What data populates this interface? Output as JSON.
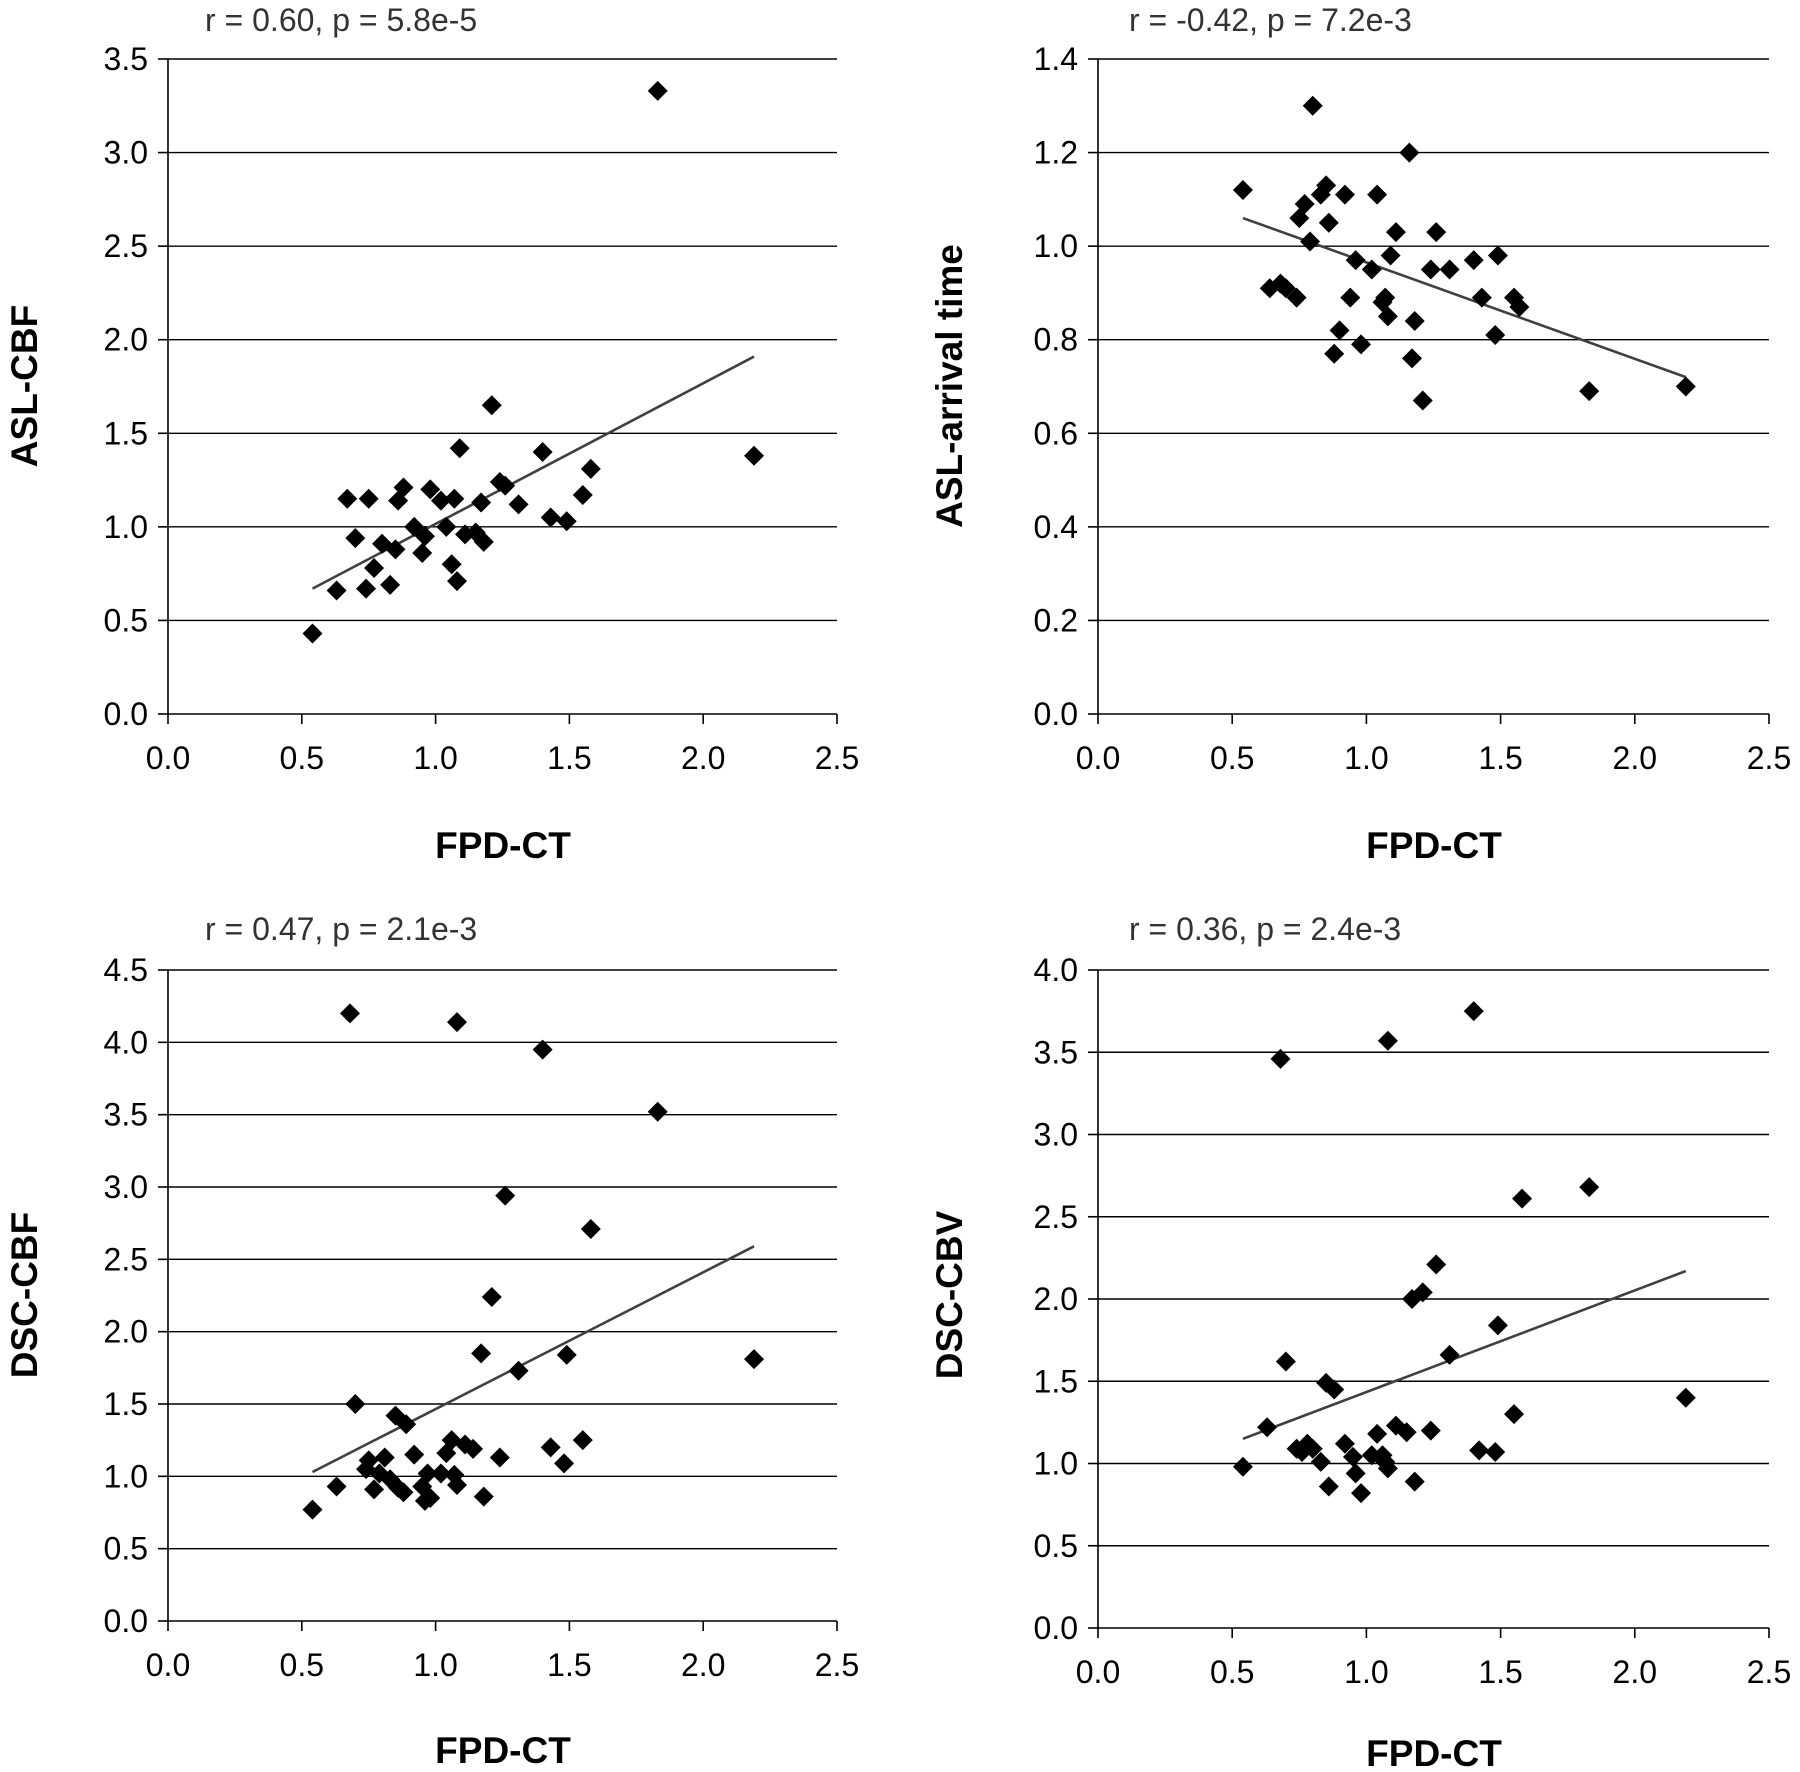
{
  "figure": {
    "background": "#ffffff"
  },
  "chart_data": [
    {
      "type": "scatter",
      "annotation": "r = 0.60, p = 5.8e-5",
      "xlabel": "FPD-CT",
      "ylabel": "ASL-CBF",
      "xlim": [
        0,
        2.5
      ],
      "ylim": [
        0,
        3.5
      ],
      "xticks": [
        0,
        0.5,
        1,
        1.5,
        2,
        2.5
      ],
      "xtick_labels": [
        "0.0",
        "0.5",
        "1.0",
        "1.5",
        "2.0",
        "2.5"
      ],
      "yticks": [
        0,
        0.5,
        1,
        1.5,
        2,
        2.5,
        3,
        3.5
      ],
      "ytick_labels": [
        "0.0",
        "0.5",
        "1.0",
        "1.5",
        "2.0",
        "2.5",
        "3.0",
        "3.5"
      ],
      "grid": "horizontal",
      "marker": "diamond",
      "marker_color": "#000000",
      "trendline": {
        "x": [
          0.54,
          2.19
        ],
        "y": [
          0.67,
          1.91
        ],
        "color": "#404040"
      },
      "points": [
        [
          0.54,
          0.43
        ],
        [
          0.63,
          0.66
        ],
        [
          0.67,
          1.15
        ],
        [
          0.7,
          0.94
        ],
        [
          0.74,
          0.67
        ],
        [
          0.75,
          1.15
        ],
        [
          0.77,
          0.78
        ],
        [
          0.8,
          0.91
        ],
        [
          0.83,
          0.69
        ],
        [
          0.85,
          0.88
        ],
        [
          0.86,
          1.14
        ],
        [
          0.88,
          1.21
        ],
        [
          0.92,
          1.0
        ],
        [
          0.95,
          0.86
        ],
        [
          0.96,
          0.95
        ],
        [
          0.98,
          1.2
        ],
        [
          1.02,
          1.14
        ],
        [
          1.04,
          1.0
        ],
        [
          1.06,
          0.8
        ],
        [
          1.07,
          1.15
        ],
        [
          1.08,
          0.71
        ],
        [
          1.09,
          1.42
        ],
        [
          1.11,
          0.96
        ],
        [
          1.15,
          0.97
        ],
        [
          1.17,
          1.13
        ],
        [
          1.18,
          0.92
        ],
        [
          1.21,
          1.65
        ],
        [
          1.24,
          1.24
        ],
        [
          1.26,
          1.22
        ],
        [
          1.31,
          1.12
        ],
        [
          1.4,
          1.4
        ],
        [
          1.43,
          1.05
        ],
        [
          1.49,
          1.03
        ],
        [
          1.55,
          1.17
        ],
        [
          1.58,
          1.31
        ],
        [
          1.83,
          3.33
        ],
        [
          2.19,
          1.38
        ]
      ]
    },
    {
      "type": "scatter",
      "annotation": "r = -0.42, p = 7.2e-3",
      "xlabel": "FPD-CT",
      "ylabel": "ASL-arrival time",
      "xlim": [
        0,
        2.5
      ],
      "ylim": [
        0,
        1.4
      ],
      "xticks": [
        0,
        0.5,
        1,
        1.5,
        2,
        2.5
      ],
      "xtick_labels": [
        "0.0",
        "0.5",
        "1.0",
        "1.5",
        "2.0",
        "2.5"
      ],
      "yticks": [
        0,
        0.2,
        0.4,
        0.6,
        0.8,
        1,
        1.2,
        1.4
      ],
      "ytick_labels": [
        "0.0",
        "0.2",
        "0.4",
        "0.6",
        "0.8",
        "1.0",
        "1.2",
        "1.4"
      ],
      "grid": "horizontal",
      "marker": "diamond",
      "marker_color": "#000000",
      "trendline": {
        "x": [
          0.54,
          2.19
        ],
        "y": [
          1.06,
          0.72
        ],
        "color": "#404040"
      },
      "points": [
        [
          0.54,
          1.12
        ],
        [
          0.64,
          0.91
        ],
        [
          0.68,
          0.92
        ],
        [
          0.7,
          0.91
        ],
        [
          0.74,
          0.89
        ],
        [
          0.75,
          1.06
        ],
        [
          0.77,
          1.09
        ],
        [
          0.79,
          1.01
        ],
        [
          0.8,
          1.3
        ],
        [
          0.83,
          1.11
        ],
        [
          0.85,
          1.13
        ],
        [
          0.86,
          1.05
        ],
        [
          0.88,
          0.77
        ],
        [
          0.9,
          0.82
        ],
        [
          0.92,
          1.11
        ],
        [
          0.94,
          0.89
        ],
        [
          0.96,
          0.97
        ],
        [
          0.98,
          0.79
        ],
        [
          1.02,
          0.95
        ],
        [
          1.04,
          1.11
        ],
        [
          1.06,
          0.88
        ],
        [
          1.07,
          0.89
        ],
        [
          1.08,
          0.85
        ],
        [
          1.09,
          0.98
        ],
        [
          1.11,
          1.03
        ],
        [
          1.16,
          1.2
        ],
        [
          1.17,
          0.76
        ],
        [
          1.18,
          0.84
        ],
        [
          1.21,
          0.67
        ],
        [
          1.24,
          0.95
        ],
        [
          1.26,
          1.03
        ],
        [
          1.31,
          0.95
        ],
        [
          1.4,
          0.97
        ],
        [
          1.43,
          0.89
        ],
        [
          1.48,
          0.81
        ],
        [
          1.49,
          0.98
        ],
        [
          1.55,
          0.89
        ],
        [
          1.57,
          0.87
        ],
        [
          1.83,
          0.69
        ],
        [
          2.19,
          0.7
        ]
      ]
    },
    {
      "type": "scatter",
      "annotation": "r = 0.47, p = 2.1e-3",
      "xlabel": "FPD-CT",
      "ylabel": "DSC-CBF",
      "xlim": [
        0,
        2.5
      ],
      "ylim": [
        0,
        4.5
      ],
      "xticks": [
        0,
        0.5,
        1,
        1.5,
        2,
        2.5
      ],
      "xtick_labels": [
        "0.0",
        "0.5",
        "1.0",
        "1.5",
        "2.0",
        "2.5"
      ],
      "yticks": [
        0,
        0.5,
        1,
        1.5,
        2,
        2.5,
        3,
        3.5,
        4,
        4.5
      ],
      "ytick_labels": [
        "0.0",
        "0.5",
        "1.0",
        "1.5",
        "2.0",
        "2.5",
        "3.0",
        "3.5",
        "4.0",
        "4.5"
      ],
      "grid": "horizontal",
      "marker": "diamond",
      "marker_color": "#000000",
      "trendline": {
        "x": [
          0.54,
          2.19
        ],
        "y": [
          1.03,
          2.59
        ],
        "color": "#404040"
      },
      "points": [
        [
          0.54,
          0.77
        ],
        [
          0.63,
          0.93
        ],
        [
          0.68,
          4.2
        ],
        [
          0.7,
          1.5
        ],
        [
          0.74,
          1.05
        ],
        [
          0.75,
          1.11
        ],
        [
          0.77,
          0.91
        ],
        [
          0.79,
          1.02
        ],
        [
          0.81,
          1.13
        ],
        [
          0.83,
          0.98
        ],
        [
          0.85,
          1.42
        ],
        [
          0.86,
          0.92
        ],
        [
          0.88,
          0.89
        ],
        [
          0.89,
          1.36
        ],
        [
          0.92,
          1.15
        ],
        [
          0.95,
          0.93
        ],
        [
          0.96,
          0.83
        ],
        [
          0.97,
          1.02
        ],
        [
          0.98,
          0.85
        ],
        [
          1.02,
          1.02
        ],
        [
          1.04,
          1.16
        ],
        [
          1.06,
          1.25
        ],
        [
          1.07,
          1.01
        ],
        [
          1.08,
          0.94
        ],
        [
          1.08,
          4.14
        ],
        [
          1.11,
          1.22
        ],
        [
          1.14,
          1.19
        ],
        [
          1.17,
          1.85
        ],
        [
          1.18,
          0.86
        ],
        [
          1.21,
          2.24
        ],
        [
          1.24,
          1.13
        ],
        [
          1.26,
          2.94
        ],
        [
          1.31,
          1.73
        ],
        [
          1.4,
          3.95
        ],
        [
          1.43,
          1.2
        ],
        [
          1.48,
          1.09
        ],
        [
          1.49,
          1.84
        ],
        [
          1.55,
          1.25
        ],
        [
          1.58,
          2.71
        ],
        [
          1.83,
          3.52
        ],
        [
          2.19,
          1.81
        ]
      ]
    },
    {
      "type": "scatter",
      "annotation": "r = 0.36, p = 2.4e-3",
      "xlabel": "FPD-CT",
      "ylabel": "DSC-CBV",
      "xlim": [
        0,
        2.5
      ],
      "ylim": [
        0,
        4.0
      ],
      "xticks": [
        0,
        0.5,
        1,
        1.5,
        2,
        2.5
      ],
      "xtick_labels": [
        "0.0",
        "0.5",
        "1.0",
        "1.5",
        "2.0",
        "2.5"
      ],
      "yticks": [
        0,
        0.5,
        1,
        1.5,
        2,
        2.5,
        3,
        3.5,
        4
      ],
      "ytick_labels": [
        "0.0",
        "0.5",
        "1.0",
        "1.5",
        "2.0",
        "2.5",
        "3.0",
        "3.5",
        "4.0"
      ],
      "grid": "horizontal",
      "marker": "diamond",
      "marker_color": "#000000",
      "trendline": {
        "x": [
          0.54,
          2.19
        ],
        "y": [
          1.15,
          2.17
        ],
        "color": "#404040"
      },
      "points": [
        [
          0.54,
          0.98
        ],
        [
          0.63,
          1.22
        ],
        [
          0.68,
          3.46
        ],
        [
          0.7,
          1.62
        ],
        [
          0.74,
          1.09
        ],
        [
          0.76,
          1.07
        ],
        [
          0.78,
          1.12
        ],
        [
          0.8,
          1.09
        ],
        [
          0.83,
          1.01
        ],
        [
          0.85,
          1.49
        ],
        [
          0.86,
          0.86
        ],
        [
          0.88,
          1.45
        ],
        [
          0.92,
          1.12
        ],
        [
          0.95,
          1.04
        ],
        [
          0.96,
          0.94
        ],
        [
          0.98,
          0.82
        ],
        [
          1.02,
          1.05
        ],
        [
          1.04,
          1.18
        ],
        [
          1.06,
          1.05
        ],
        [
          1.07,
          1.01
        ],
        [
          1.08,
          0.97
        ],
        [
          1.08,
          3.57
        ],
        [
          1.11,
          1.23
        ],
        [
          1.15,
          1.19
        ],
        [
          1.17,
          2.0
        ],
        [
          1.18,
          0.89
        ],
        [
          1.21,
          2.04
        ],
        [
          1.24,
          1.2
        ],
        [
          1.26,
          2.21
        ],
        [
          1.31,
          1.66
        ],
        [
          1.4,
          3.75
        ],
        [
          1.42,
          1.08
        ],
        [
          1.48,
          1.07
        ],
        [
          1.49,
          1.84
        ],
        [
          1.55,
          1.3
        ],
        [
          1.58,
          2.61
        ],
        [
          1.83,
          2.68
        ],
        [
          2.19,
          1.4
        ]
      ]
    }
  ]
}
